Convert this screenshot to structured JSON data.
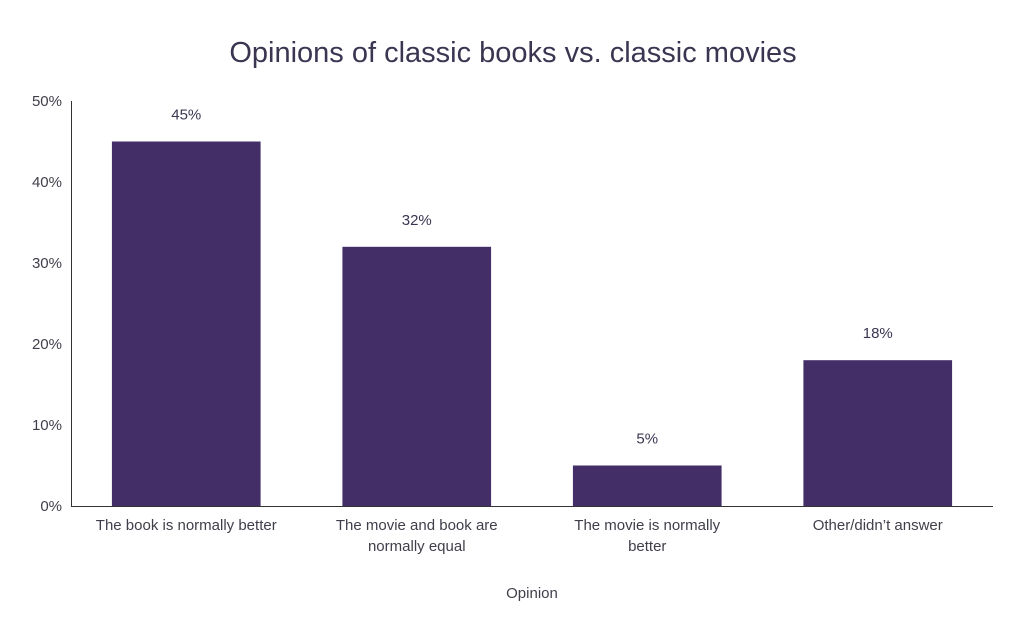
{
  "chart_data": {
    "type": "bar",
    "title": "Opinions of classic books vs. classic movies",
    "xlabel": "Opinion",
    "ylabel": "",
    "categories": [
      [
        "The book is normally better"
      ],
      [
        "The movie and book are",
        "normally equal"
      ],
      [
        "The movie is normally",
        "better"
      ],
      [
        "Other/didn’t answer"
      ]
    ],
    "values": [
      45,
      32,
      5,
      18
    ],
    "data_labels": [
      "45%",
      "32%",
      "5%",
      "18%"
    ],
    "ylim": [
      0,
      50
    ],
    "yticks": [
      0,
      10,
      20,
      30,
      40,
      50
    ],
    "ytick_labels": [
      "0%",
      "10%",
      "20%",
      "30%",
      "40%",
      "50%"
    ],
    "grid": false,
    "legend": "none",
    "bar_color": "#432e68",
    "axis_color": "#333333"
  }
}
